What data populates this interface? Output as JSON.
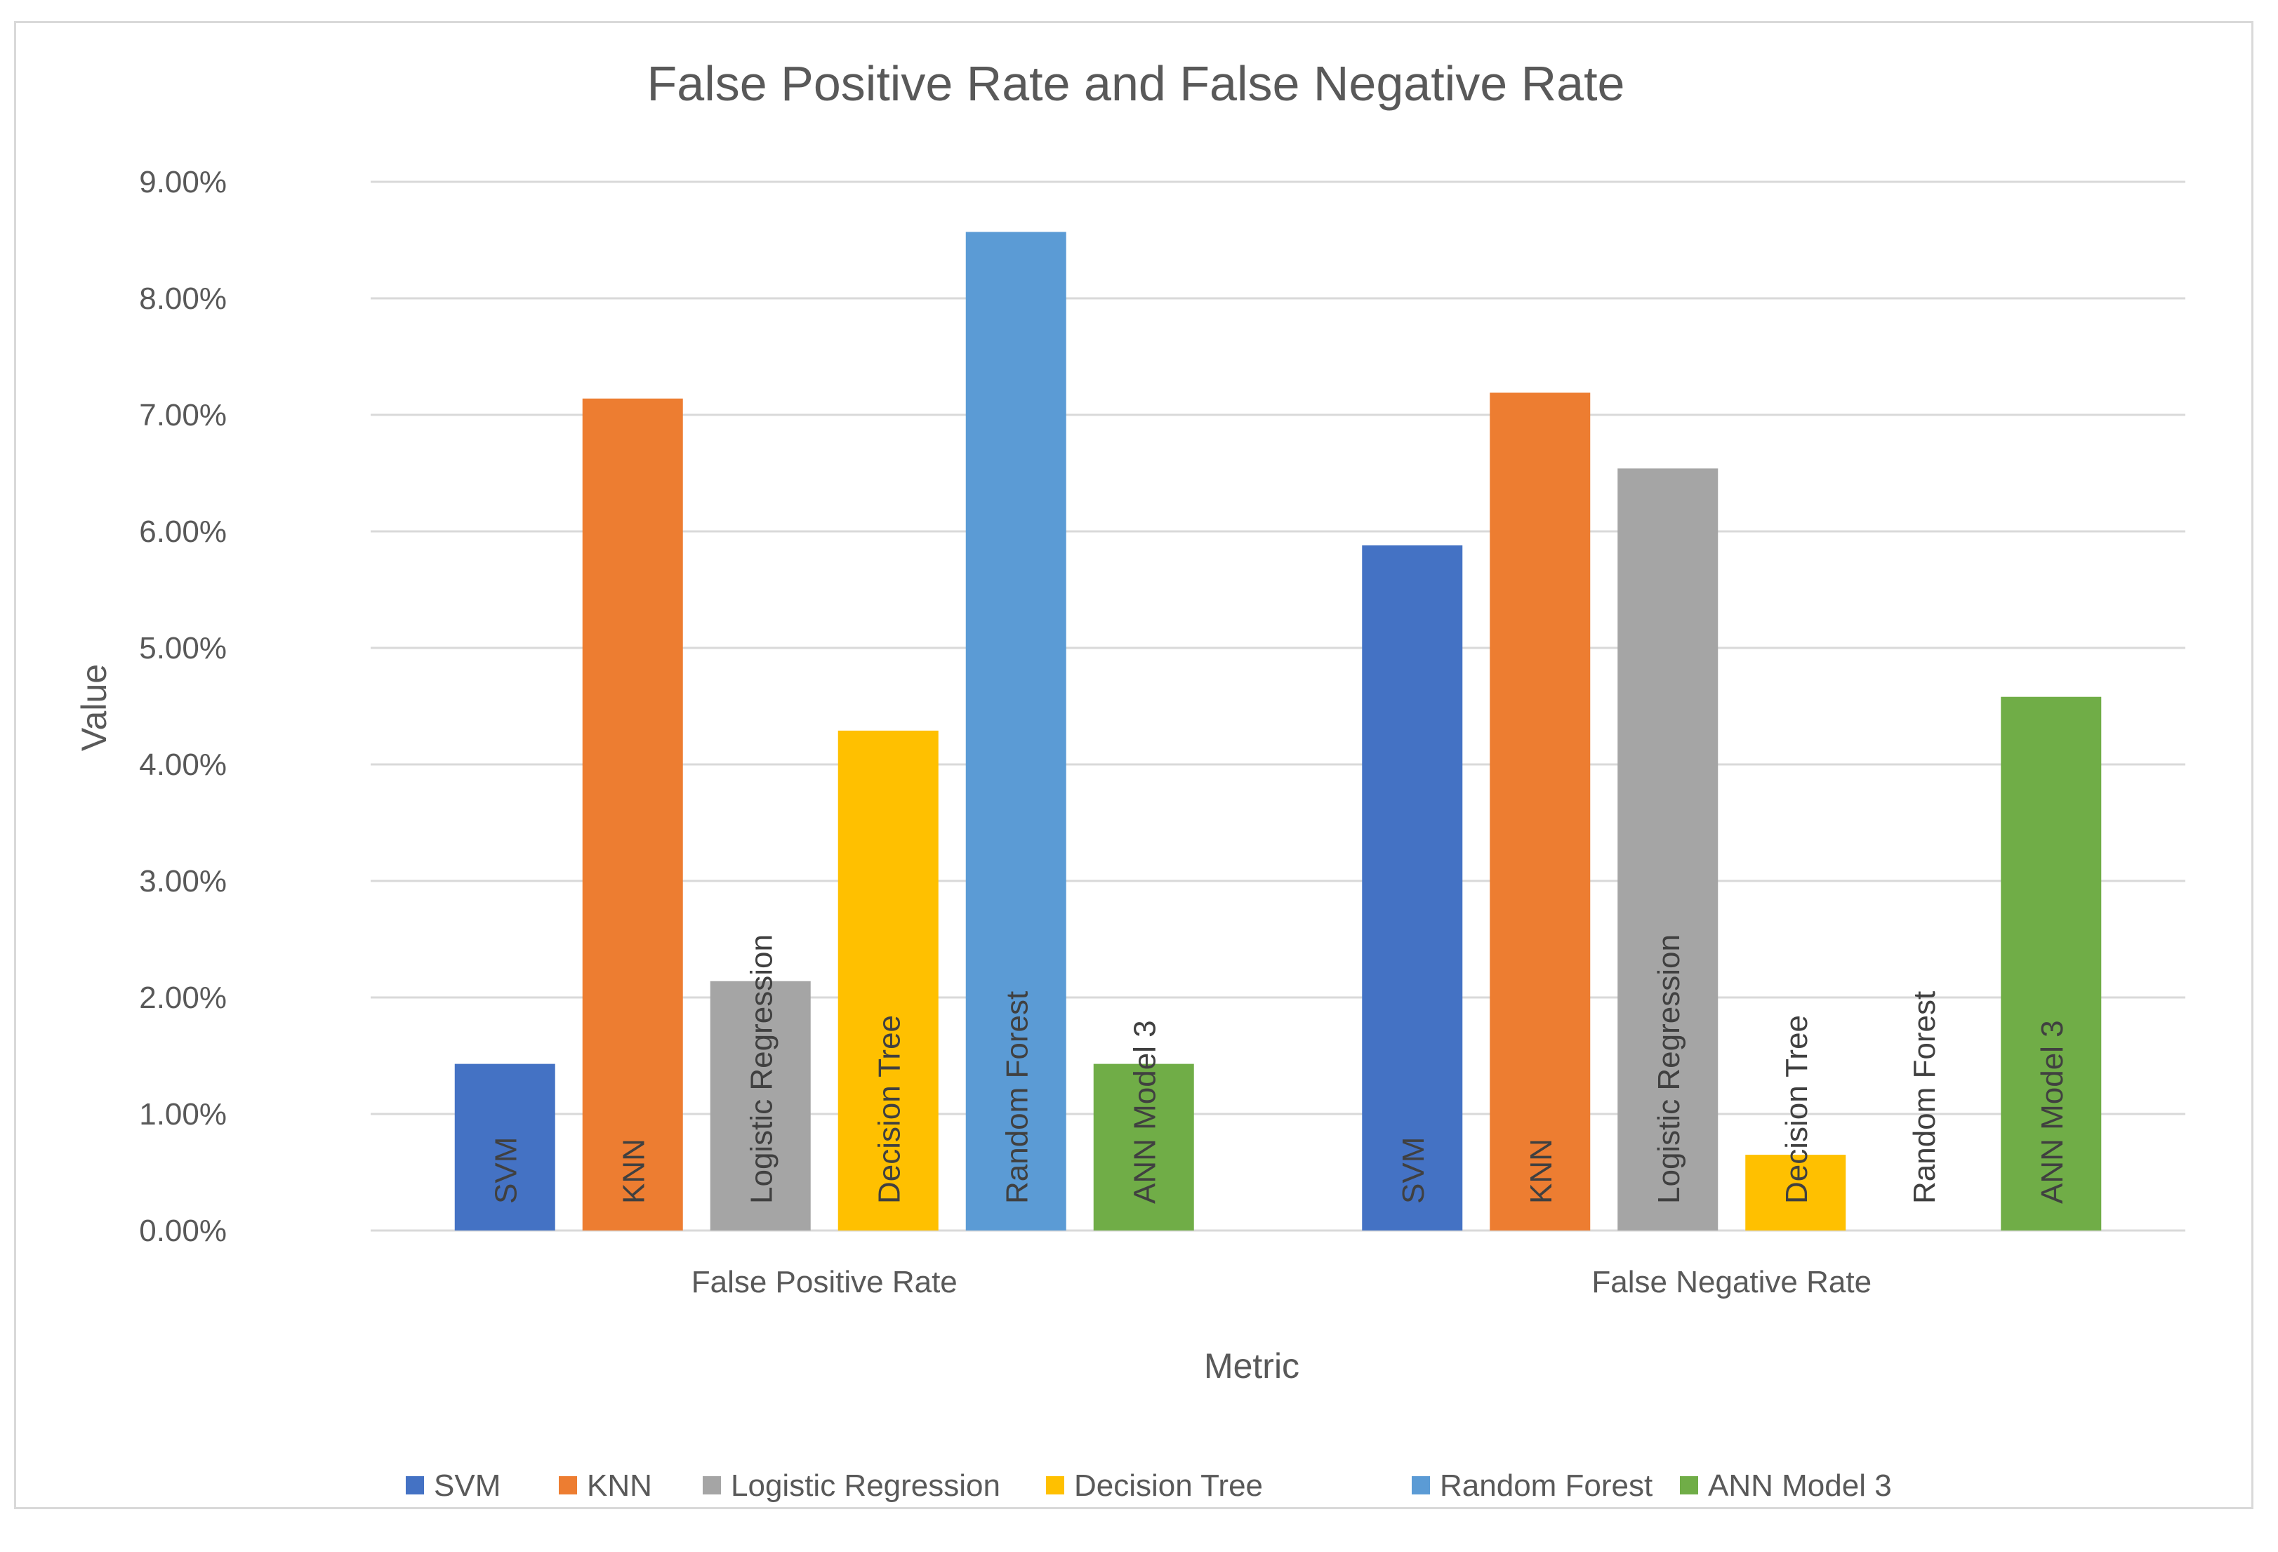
{
  "chart_data": {
    "type": "bar",
    "title": "False Positive Rate and False Negative Rate",
    "xlabel": "Metric",
    "ylabel": "Value",
    "ylim": [
      0,
      0.09
    ],
    "y_ticks": [
      "0.00%",
      "1.00%",
      "2.00%",
      "3.00%",
      "4.00%",
      "5.00%",
      "6.00%",
      "7.00%",
      "8.00%",
      "9.00%"
    ],
    "categories": [
      "False Positive Rate",
      "False Negative Rate"
    ],
    "series": [
      {
        "name": "SVM",
        "color": "#4472C4",
        "values": [
          0.0143,
          0.0588
        ]
      },
      {
        "name": "KNN",
        "color": "#ED7D31",
        "values": [
          0.0714,
          0.0719
        ]
      },
      {
        "name": "Logistic Regression",
        "color": "#A5A5A5",
        "values": [
          0.0214,
          0.0654
        ]
      },
      {
        "name": "Decision Tree",
        "color": "#FFC000",
        "values": [
          0.0429,
          0.0065
        ]
      },
      {
        "name": "Random Forest",
        "color": "#5B9BD5",
        "values": [
          0.0857,
          0.0
        ]
      },
      {
        "name": "ANN Model 3",
        "color": "#70AD47",
        "values": [
          0.0143,
          0.0458
        ]
      }
    ],
    "legend_position": "bottom",
    "grid": true,
    "data_labels": "series-name"
  }
}
